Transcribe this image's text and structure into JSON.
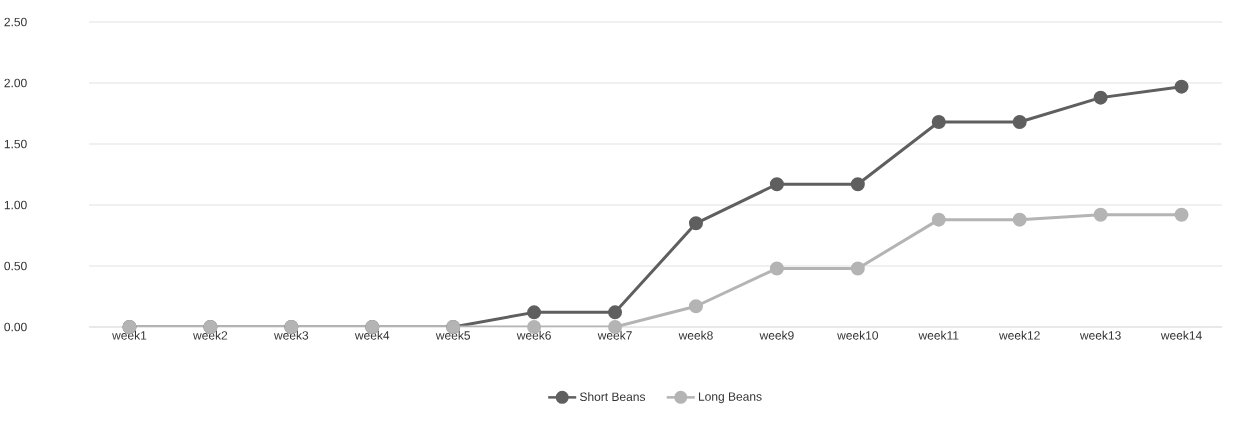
{
  "chart_data": {
    "type": "line",
    "categories": [
      "week1",
      "week2",
      "week3",
      "week4",
      "week5",
      "week6",
      "week7",
      "week8",
      "week9",
      "week10",
      "week11",
      "week12",
      "week13",
      "week14"
    ],
    "series": [
      {
        "name": "Short Beans",
        "color": "#5f5f5f",
        "values": [
          0,
          0,
          0,
          0,
          0,
          0.12,
          0.12,
          0.85,
          1.17,
          1.17,
          1.68,
          1.68,
          1.88,
          1.97
        ]
      },
      {
        "name": "Long Beans",
        "color": "#b4b4b4",
        "values": [
          0,
          0,
          0,
          0,
          0,
          0,
          0,
          0.17,
          0.48,
          0.48,
          0.88,
          0.88,
          0.92,
          0.92
        ]
      }
    ],
    "ylim": [
      0,
      2.5
    ],
    "yticks": [
      {
        "value": 0,
        "label": "0.00"
      },
      {
        "value": 0.5,
        "label": "0.50"
      },
      {
        "value": 1,
        "label": "1.00"
      },
      {
        "value": 1.5,
        "label": "1.50"
      },
      {
        "value": 2,
        "label": "2.00"
      },
      {
        "value": 2.5,
        "label": "2.50"
      }
    ],
    "grid": "y",
    "legend": "bottom",
    "marker": "circle",
    "line_style": "solid"
  }
}
